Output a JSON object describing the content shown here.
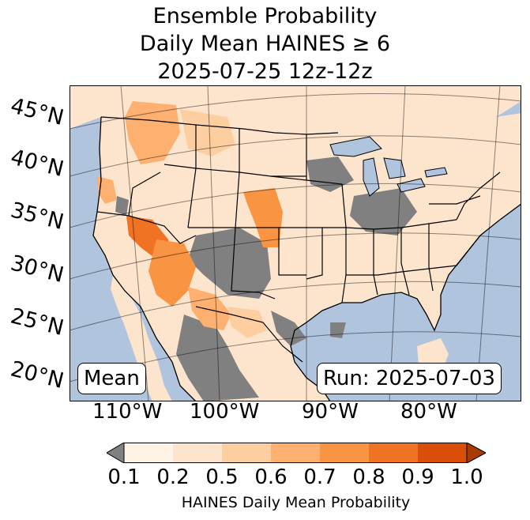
{
  "title": {
    "line1": "Ensemble Probability",
    "line2": "Daily Mean HAINES ≥ 6",
    "line3": "2025-07-25 12z-12z"
  },
  "map": {
    "lat_labels": [
      "45°N",
      "40°N",
      "35°N",
      "30°N",
      "25°N",
      "20°N"
    ],
    "lon_labels": [
      "110°W",
      "100°W",
      "90°W",
      "80°W"
    ],
    "ocean_color": "#b0c4de",
    "land_color": "#fde5cd",
    "nodata_color": "#808080",
    "mean_label": "Mean",
    "run_label": "Run: 2025-07-03"
  },
  "colorbar": {
    "ticks": [
      "0.1",
      "0.2",
      "0.5",
      "0.6",
      "0.7",
      "0.8",
      "0.9",
      "1.0"
    ],
    "colors": [
      "#fff3e6",
      "#fde5cd",
      "#fdcfa0",
      "#fdb06f",
      "#f99442",
      "#ef7323",
      "#d94f0a",
      "#a83a03"
    ],
    "under_color": "#808080",
    "label": "HAINES Daily Mean Probability"
  }
}
